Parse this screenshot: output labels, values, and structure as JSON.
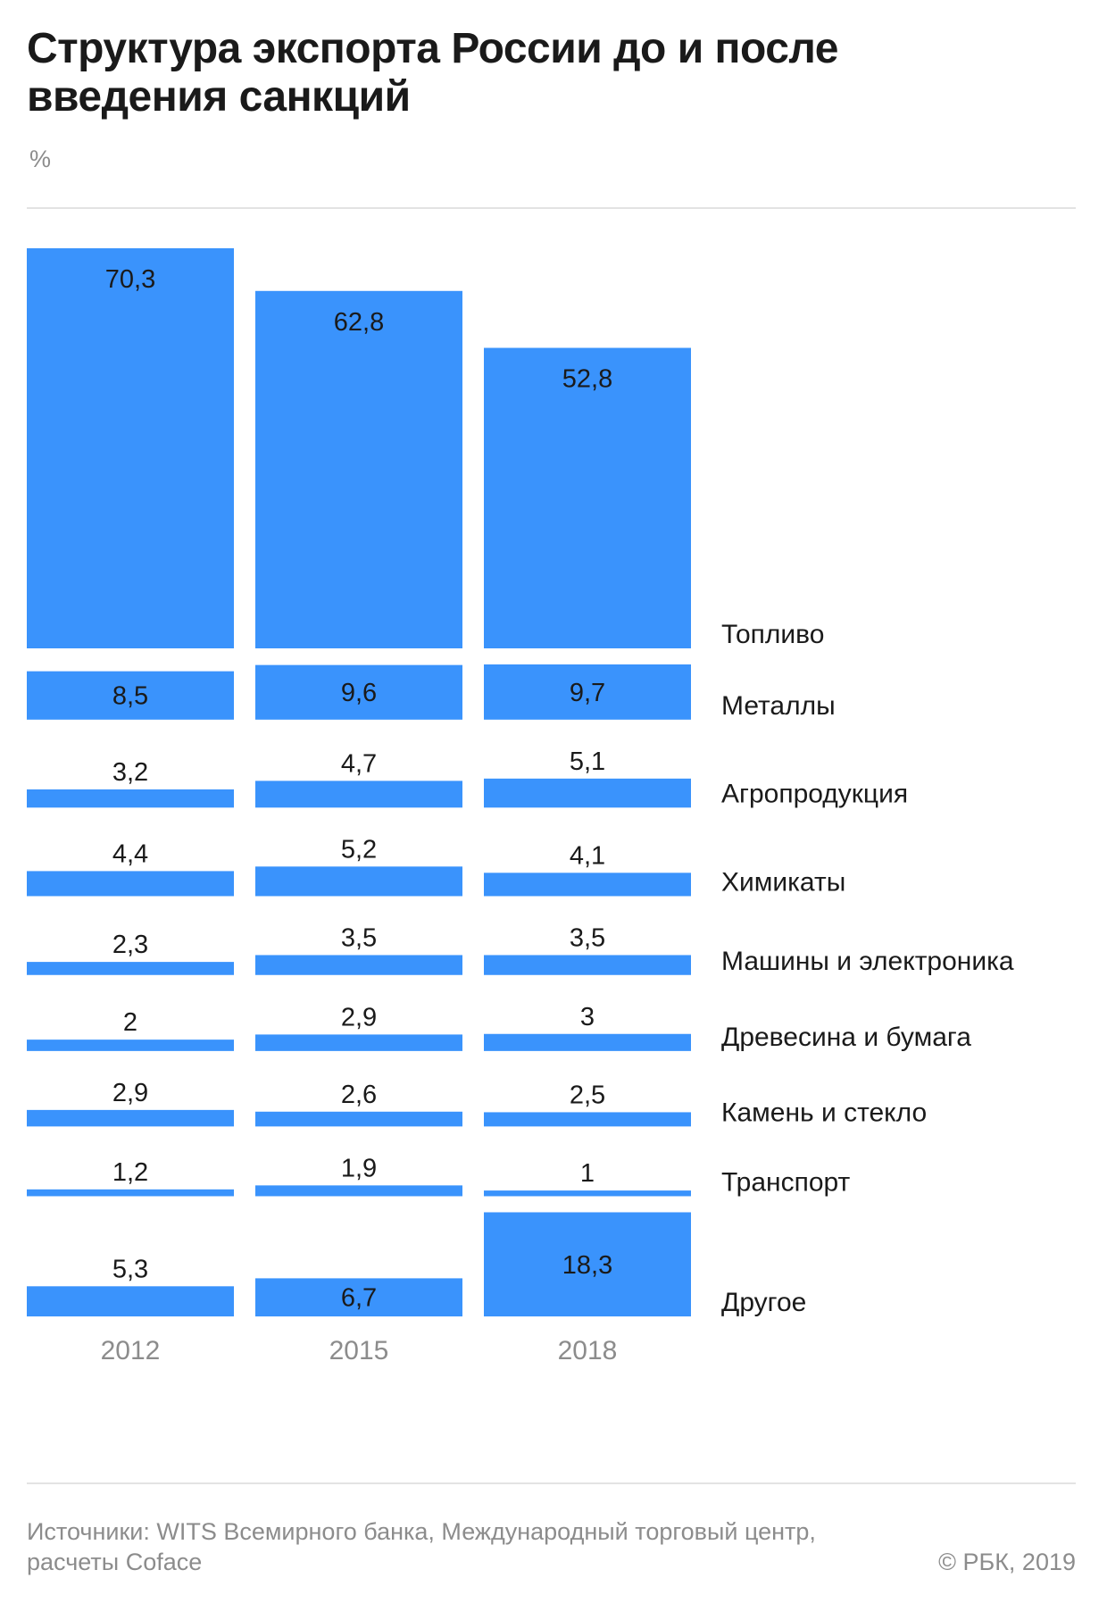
{
  "header": {
    "title": "Структура экспорта России до и после введения санкций",
    "unit": "%"
  },
  "footer": {
    "source": "Источники: WITS Всемирного банка, Международный торговый центр, расчеты Coface",
    "credit": "© РБК, 2019"
  },
  "colors": {
    "bar": "#3a93fc",
    "label": "#1a1a1a",
    "year": "#8c8c8c"
  },
  "chart_data": {
    "type": "bar",
    "orientation": "vertical-small-multiples",
    "title": "Структура экспорта России до и после введения санкций",
    "ylabel": "%",
    "categories": [
      "2012",
      "2015",
      "2018"
    ],
    "series": [
      {
        "name": "Топливо",
        "values": [
          70.3,
          62.8,
          52.8
        ],
        "labels": [
          "70,3",
          "62,8",
          "52,8"
        ]
      },
      {
        "name": "Металлы",
        "values": [
          8.5,
          9.6,
          9.7
        ],
        "labels": [
          "8,5",
          "9,6",
          "9,7"
        ]
      },
      {
        "name": "Агропродукция",
        "values": [
          3.2,
          4.7,
          5.1
        ],
        "labels": [
          "3,2",
          "4,7",
          "5,1"
        ]
      },
      {
        "name": "Химикаты",
        "values": [
          4.4,
          5.2,
          4.1
        ],
        "labels": [
          "4,4",
          "5,2",
          "4,1"
        ]
      },
      {
        "name": "Машины и электроника",
        "values": [
          2.3,
          3.5,
          3.5
        ],
        "labels": [
          "2,3",
          "3,5",
          "3,5"
        ]
      },
      {
        "name": "Древесина и бумага",
        "values": [
          2,
          2.9,
          3
        ],
        "labels": [
          "2",
          "2,9",
          "3"
        ]
      },
      {
        "name": "Камень и стекло",
        "values": [
          2.9,
          2.6,
          2.5
        ],
        "labels": [
          "2,9",
          "2,6",
          "2,5"
        ]
      },
      {
        "name": "Транспорт",
        "values": [
          1.2,
          1.9,
          1
        ],
        "labels": [
          "1,2",
          "1,9",
          "1"
        ]
      },
      {
        "name": "Другое",
        "values": [
          5.3,
          6.7,
          18.3
        ],
        "labels": [
          "5,3",
          "6,7",
          "18,3"
        ]
      }
    ]
  }
}
